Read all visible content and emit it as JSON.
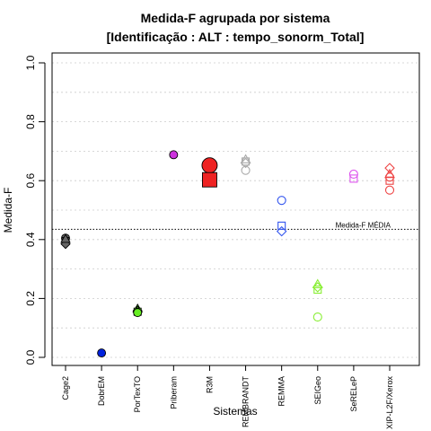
{
  "chart_data": {
    "type": "scatter",
    "title": "Medida-F agrupada por sistema",
    "subtitle": "[Identificação : ALT : tempo_sonorm_Total]",
    "xlabel": "Sistemas",
    "ylabel": "Medida-F",
    "ylim": [
      0,
      1
    ],
    "yticks": [
      "0.0",
      "0.2",
      "0.4",
      "0.6",
      "0.8",
      "1.0"
    ],
    "grid": true,
    "reference_line": {
      "label": "Medida-F MÉDIA",
      "value": 0.435
    },
    "categories": [
      "Cage2",
      "DobrEM",
      "PorTexTO",
      "Priberam",
      "R3M",
      "REMBRANDT",
      "REMMA",
      "SEIGeo",
      "SeRELeP",
      "XIP-L2F/Xerox"
    ],
    "series": [
      {
        "category": "Cage2",
        "color": "#666666",
        "points": [
          {
            "y": 0.405,
            "shape": "circle",
            "filled": true
          },
          {
            "y": 0.395,
            "shape": "square",
            "filled": true
          },
          {
            "y": 0.385,
            "shape": "diamond",
            "filled": true
          },
          {
            "y": 0.402,
            "shape": "triangle",
            "filled": true
          }
        ]
      },
      {
        "category": "DobrEM",
        "color": "#0022dd",
        "points": [
          {
            "y": 0.015,
            "shape": "circle",
            "filled": true
          }
        ]
      },
      {
        "category": "PorTexTO",
        "color": "#66ee22",
        "points": [
          {
            "y": 0.165,
            "shape": "triangle",
            "filled": true
          },
          {
            "y": 0.158,
            "shape": "diamond",
            "filled": true
          },
          {
            "y": 0.155,
            "shape": "square",
            "filled": true
          },
          {
            "y": 0.152,
            "shape": "circle",
            "filled": true
          }
        ]
      },
      {
        "category": "Priberam",
        "color": "#cc33dd",
        "points": [
          {
            "y": 0.688,
            "shape": "circle",
            "filled": true
          }
        ]
      },
      {
        "category": "R3M",
        "color": "#ee2222",
        "points": [
          {
            "y": 0.652,
            "shape": "circle",
            "filled": true,
            "large": true
          },
          {
            "y": 0.603,
            "shape": "square",
            "filled": true,
            "large": true
          }
        ]
      },
      {
        "category": "REMBRANDT",
        "color": "#aaaaaa",
        "points": [
          {
            "y": 0.672,
            "shape": "triangle",
            "filled": false
          },
          {
            "y": 0.665,
            "shape": "square",
            "filled": false
          },
          {
            "y": 0.66,
            "shape": "diamond",
            "filled": false
          },
          {
            "y": 0.635,
            "shape": "circle",
            "filled": false
          }
        ]
      },
      {
        "category": "REMMA",
        "color": "#3355ee",
        "points": [
          {
            "y": 0.533,
            "shape": "circle",
            "filled": false
          },
          {
            "y": 0.447,
            "shape": "square",
            "filled": false
          },
          {
            "y": 0.428,
            "shape": "diamond",
            "filled": false
          }
        ]
      },
      {
        "category": "SEIGeo",
        "color": "#88ee33",
        "points": [
          {
            "y": 0.248,
            "shape": "triangle",
            "filled": false
          },
          {
            "y": 0.238,
            "shape": "diamond",
            "filled": false
          },
          {
            "y": 0.23,
            "shape": "square",
            "filled": false
          },
          {
            "y": 0.137,
            "shape": "circle",
            "filled": false
          }
        ]
      },
      {
        "category": "SeRELeP",
        "color": "#dd55ee",
        "points": [
          {
            "y": 0.622,
            "shape": "circle",
            "filled": false
          },
          {
            "y": 0.607,
            "shape": "square",
            "filled": false
          }
        ]
      },
      {
        "category": "XIP-L2F/Xerox",
        "color": "#ee4444",
        "points": [
          {
            "y": 0.643,
            "shape": "diamond",
            "filled": false
          },
          {
            "y": 0.622,
            "shape": "triangle",
            "filled": false
          },
          {
            "y": 0.612,
            "shape": "circle",
            "filled": false
          },
          {
            "y": 0.6,
            "shape": "square",
            "filled": false
          },
          {
            "y": 0.568,
            "shape": "circle",
            "filled": false
          }
        ]
      }
    ]
  }
}
